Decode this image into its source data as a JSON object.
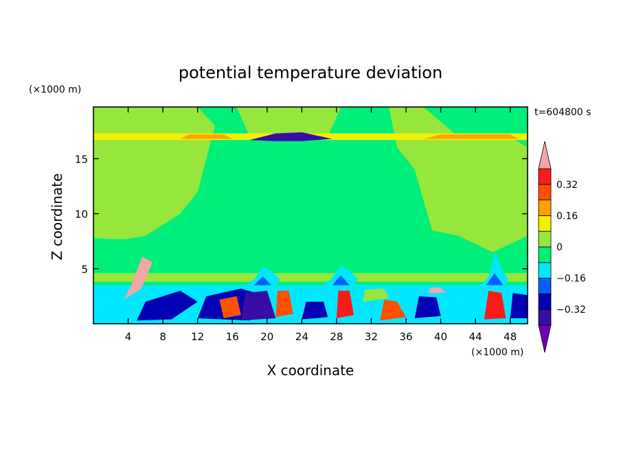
{
  "chart_data": {
    "type": "heatmap",
    "title": "potential temperature deviation",
    "xlabel": "X coordinate",
    "ylabel": "Z coordinate",
    "x_unit": "(×1000 m)",
    "y_unit": "(×1000 m)",
    "time_label": "t=604800 s",
    "xlim": [
      0,
      50
    ],
    "ylim": [
      0,
      19.7
    ],
    "x_ticks": [
      4,
      8,
      12,
      16,
      20,
      24,
      28,
      32,
      36,
      40,
      44,
      48
    ],
    "y_ticks": [
      5,
      10,
      15
    ],
    "colorbar": {
      "levels": [
        -0.4,
        -0.32,
        -0.24,
        -0.16,
        -0.08,
        0,
        0.08,
        0.16,
        0.24,
        0.32,
        0.4
      ],
      "labels": [
        {
          "value": 0.32,
          "text": "0.32"
        },
        {
          "value": 0.16,
          "text": "0.16"
        },
        {
          "value": 0,
          "text": "0"
        },
        {
          "value": -0.16,
          "text": "−0.16"
        },
        {
          "value": -0.32,
          "text": "−0.32"
        }
      ],
      "colors": [
        "#7000b8",
        "#3a0ca6",
        "#0000b4",
        "#0060ff",
        "#00e8ff",
        "#00ee7a",
        "#96e63c",
        "#f0f000",
        "#ffa000",
        "#ff5000",
        "#ff1a1a",
        "#f4a6a6"
      ],
      "extend": "both"
    },
    "background_value": -0.04,
    "regions": [
      {
        "name": "upper-left-positive",
        "value": 0.04,
        "x": [
          0,
          4,
          8,
          12,
          14,
          13,
          12,
          10,
          8,
          6,
          4,
          2,
          0
        ],
        "z": [
          19.7,
          19.7,
          19.7,
          19.7,
          18,
          15,
          12,
          10,
          9,
          8,
          7.7,
          7.7,
          7.8
        ]
      },
      {
        "name": "upper-mid-positive",
        "value": 0.04,
        "x": [
          16.5,
          28.5,
          27,
          22,
          18
        ],
        "z": [
          19.7,
          19.7,
          17,
          17,
          17
        ]
      },
      {
        "name": "right-positive",
        "value": 0.04,
        "x": [
          34,
          38,
          42,
          48,
          50,
          50,
          46,
          42,
          39,
          37,
          35
        ],
        "z": [
          19.7,
          19.7,
          17,
          17,
          16,
          8,
          6.5,
          8,
          8.5,
          14,
          16
        ]
      },
      {
        "name": "low-mid-band",
        "value": 0.04,
        "x": [
          0,
          50,
          50,
          0
        ],
        "z": [
          3.8,
          3.8,
          4.6,
          4.6
        ]
      },
      {
        "name": "upper-band",
        "value": 0.12,
        "x": [
          0,
          50,
          50,
          0
        ],
        "z": [
          16.7,
          16.7,
          17.3,
          17.3
        ]
      },
      {
        "name": "upper-band-warm-left",
        "value": 0.2,
        "x": [
          10,
          16,
          15,
          11
        ],
        "z": [
          16.8,
          16.8,
          17.2,
          17.2
        ]
      },
      {
        "name": "upper-band-warm-right",
        "value": 0.2,
        "x": [
          38,
          49,
          48,
          40
        ],
        "z": [
          16.8,
          16.8,
          17.2,
          17.2
        ]
      },
      {
        "name": "upper-cold-lens",
        "value": -0.36,
        "x": [
          18,
          21,
          24,
          27.5,
          24,
          21
        ],
        "z": [
          16.7,
          17.3,
          17.4,
          16.8,
          16.6,
          16.6
        ]
      },
      {
        "name": "low-boundary-layer",
        "value": -0.12,
        "x": [
          0,
          50,
          50,
          0
        ],
        "z": [
          0,
          0,
          3.5,
          3.5
        ]
      },
      {
        "name": "bl-dark-1",
        "value": -0.28,
        "x": [
          5,
          9,
          12,
          10,
          6
        ],
        "z": [
          0.3,
          0.4,
          2,
          3,
          2
        ]
      },
      {
        "name": "bl-dark-2",
        "value": -0.28,
        "x": [
          12,
          18,
          20,
          17,
          13
        ],
        "z": [
          0.5,
          0.3,
          2.5,
          3.2,
          2.5
        ]
      },
      {
        "name": "bl-purple-1",
        "value": -0.36,
        "x": [
          17,
          21,
          20,
          17.5
        ],
        "z": [
          0.3,
          0.5,
          3,
          2.8
        ]
      },
      {
        "name": "bl-warm-1",
        "value": 0.28,
        "x": [
          15,
          17,
          16.5,
          14.5
        ],
        "z": [
          0.5,
          0.8,
          2.5,
          2.2
        ]
      },
      {
        "name": "bl-warm-2",
        "value": 0.28,
        "x": [
          21,
          23,
          22.5,
          21.2
        ],
        "z": [
          0.6,
          0.9,
          3,
          3
        ]
      },
      {
        "name": "bl-warm-3",
        "value": 0.36,
        "x": [
          28,
          30,
          29.5,
          28.2
        ],
        "z": [
          0.5,
          0.8,
          3,
          3
        ]
      },
      {
        "name": "bl-warm-4",
        "value": 0.28,
        "x": [
          33,
          36,
          35,
          33.5
        ],
        "z": [
          0.3,
          0.6,
          2,
          2.2
        ]
      },
      {
        "name": "bl-warm-5",
        "value": 0.36,
        "x": [
          45,
          47.5,
          47,
          45.5
        ],
        "z": [
          0.4,
          0.5,
          2.8,
          3
        ]
      },
      {
        "name": "bl-dark-3",
        "value": -0.28,
        "x": [
          24,
          27,
          26.5,
          24.5
        ],
        "z": [
          0.4,
          0.6,
          2,
          2
        ]
      },
      {
        "name": "bl-dark-4",
        "value": -0.28,
        "x": [
          37,
          40,
          39.5,
          37.5
        ],
        "z": [
          0.5,
          0.7,
          2.4,
          2.5
        ]
      },
      {
        "name": "bl-dark-5",
        "value": -0.28,
        "x": [
          48,
          50,
          50,
          48.3
        ],
        "z": [
          0.5,
          0.5,
          2.6,
          2.8
        ]
      },
      {
        "name": "bl-green-1",
        "value": 0.04,
        "x": [
          31,
          34,
          33.5,
          31.3
        ],
        "z": [
          2,
          2.3,
          3.2,
          3.1
        ]
      },
      {
        "name": "plume-4-6km",
        "value": 0.44,
        "x": [
          3.5,
          5.5,
          6.8,
          5.6,
          4.3
        ],
        "z": [
          2.2,
          3.2,
          5.6,
          6.1,
          3.4
        ]
      },
      {
        "name": "cap-41km",
        "value": 0.44,
        "x": [
          38.5,
          40.5,
          40,
          38.8
        ],
        "z": [
          2.8,
          2.8,
          3.3,
          3.3
        ]
      },
      {
        "name": "bump-19km",
        "value": -0.16,
        "x": [
          17.5,
          18.5,
          19.5,
          20.5,
          21.5,
          21,
          18
        ],
        "z": [
          3.5,
          4,
          5.2,
          4.8,
          4,
          3.5,
          3.5
        ]
      },
      {
        "name": "bump-28km",
        "value": -0.16,
        "x": [
          26.5,
          27.5,
          28.5,
          29.5,
          30.5,
          30,
          27
        ],
        "z": [
          3.5,
          4.2,
          5.3,
          4.8,
          4,
          3.5,
          3.5
        ]
      },
      {
        "name": "bump-46km",
        "value": -0.16,
        "x": [
          44.5,
          45.5,
          46.3,
          47,
          47.8,
          47.3,
          45
        ],
        "z": [
          3.5,
          4.2,
          6.5,
          5,
          4,
          3.5,
          3.5
        ]
      },
      {
        "name": "plume-core-19km",
        "value": -0.24,
        "x": [
          18.5,
          19.5,
          20.5,
          20,
          19
        ],
        "z": [
          3.5,
          4.3,
          3.5,
          3.5,
          3.5
        ]
      },
      {
        "name": "plume-core-28km",
        "value": -0.24,
        "x": [
          27.5,
          28.5,
          29.5,
          29,
          28
        ],
        "z": [
          3.5,
          4.4,
          3.5,
          3.5,
          3.5
        ]
      },
      {
        "name": "plume-core-46km",
        "value": -0.24,
        "x": [
          45.2,
          46.2,
          47.2,
          46.8,
          45.6
        ],
        "z": [
          3.5,
          4.6,
          3.5,
          3.5,
          3.5
        ]
      }
    ]
  }
}
